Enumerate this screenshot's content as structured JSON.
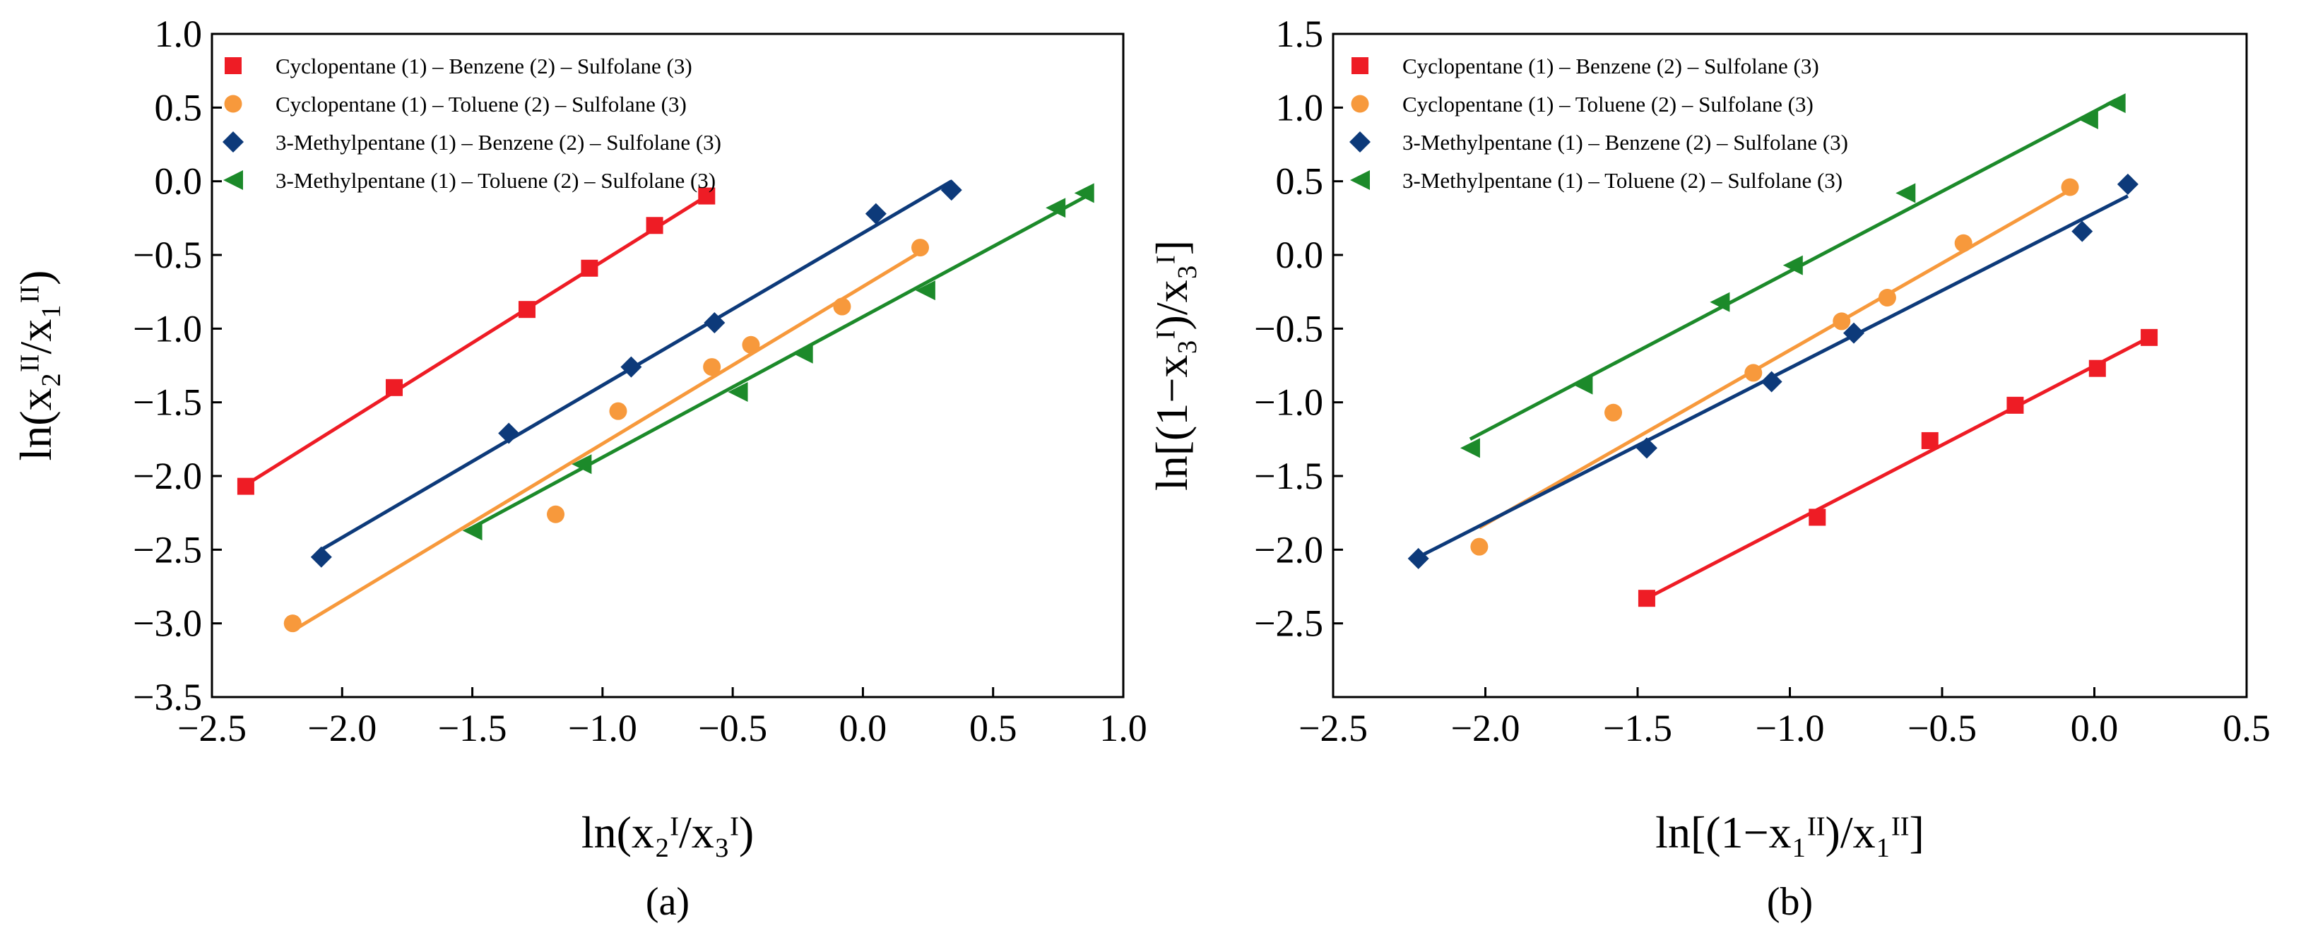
{
  "figure": {
    "colors": {
      "red": "#ee1c25",
      "orange": "#f7993c",
      "navy": "#0d3a7a",
      "green": "#1c8a2a"
    }
  },
  "chart_data": [
    {
      "type": "scatter",
      "panel_label": "(a)",
      "xlabel": "ln(x₂ᴵ/x₃ᴵ)",
      "ylabel": "ln(x₂ᴵᴵ/x₁ᴵᴵ)",
      "xlim": [
        -2.5,
        1.0
      ],
      "ylim": [
        -3.5,
        1.0
      ],
      "x_ticks": [
        -2.5,
        -2.0,
        -1.5,
        -1.0,
        -0.5,
        0.0,
        0.5,
        1.0
      ],
      "x_tick_labels": [
        "−2.5",
        "−2.0",
        "−1.5",
        "−1.0",
        "−0.5",
        "0.0",
        "0.5",
        "1.0"
      ],
      "y_ticks": [
        -3.5,
        -3.0,
        -2.5,
        -2.0,
        -1.5,
        -1.0,
        -0.5,
        0.0,
        0.5,
        1.0
      ],
      "y_tick_labels": [
        "−3.5",
        "−3.0",
        "−2.5",
        "−2.0",
        "−1.5",
        "−1.0",
        "−0.5",
        "0.0",
        "0.5",
        "1.0"
      ],
      "legend_position": "top-left",
      "series": [
        {
          "name": "Cyclopentane (1) – Benzene (2) – Sulfolane (3)",
          "marker": "square",
          "color": "#ee1c25",
          "points": [
            [
              -2.37,
              -2.07
            ],
            [
              -1.8,
              -1.4
            ],
            [
              -1.29,
              -0.87
            ],
            [
              -1.05,
              -0.59
            ],
            [
              -0.8,
              -0.3
            ],
            [
              -0.6,
              -0.1
            ]
          ],
          "fit": [
            [
              -2.37,
              -2.06
            ],
            [
              -0.6,
              -0.1
            ]
          ]
        },
        {
          "name": "Cyclopentane (1) – Toluene (2) – Sulfolane (3)",
          "marker": "circle",
          "color": "#f7993c",
          "points": [
            [
              -2.19,
              -3.0
            ],
            [
              -1.18,
              -2.26
            ],
            [
              -0.94,
              -1.56
            ],
            [
              -0.58,
              -1.26
            ],
            [
              -0.43,
              -1.11
            ],
            [
              -0.08,
              -0.85
            ],
            [
              0.22,
              -0.45
            ]
          ],
          "fit": [
            [
              -2.19,
              -3.05
            ],
            [
              0.22,
              -0.48
            ]
          ]
        },
        {
          "name": "3-Methylpentane (1) – Benzene (2) – Sulfolane (3)",
          "marker": "diamond",
          "color": "#0d3a7a",
          "points": [
            [
              -2.08,
              -2.55
            ],
            [
              -1.36,
              -1.71
            ],
            [
              -0.89,
              -1.26
            ],
            [
              -0.57,
              -0.96
            ],
            [
              0.05,
              -0.22
            ],
            [
              0.34,
              -0.06
            ]
          ],
          "fit": [
            [
              -2.08,
              -2.5
            ],
            [
              0.34,
              0.0
            ]
          ]
        },
        {
          "name": "3-Methylpentane (1) – Toluene (2) – Sulfolane (3)",
          "marker": "triangle-left",
          "color": "#1c8a2a",
          "points": [
            [
              -1.5,
              -2.37
            ],
            [
              -1.08,
              -1.92
            ],
            [
              -0.48,
              -1.43
            ],
            [
              -0.23,
              -1.17
            ],
            [
              0.24,
              -0.74
            ],
            [
              0.74,
              -0.18
            ],
            [
              0.85,
              -0.08
            ]
          ],
          "fit": [
            [
              -1.5,
              -2.35
            ],
            [
              0.87,
              -0.09
            ]
          ]
        }
      ]
    },
    {
      "type": "scatter",
      "panel_label": "(b)",
      "xlabel": "ln[(1−x₁ᴵᴵ)/x₁ᴵᴵ]",
      "ylabel": "ln[(1−x₃ᴵ)/x₃ᴵ]",
      "xlim": [
        -2.5,
        0.5
      ],
      "ylim": [
        -3.0,
        1.5
      ],
      "x_ticks": [
        -2.5,
        -2.0,
        -1.5,
        -1.0,
        -0.5,
        0.0,
        0.5
      ],
      "x_tick_labels": [
        "−2.5",
        "−2.0",
        "−1.5",
        "−1.0",
        "−0.5",
        "0.0",
        "0.5"
      ],
      "y_ticks": [
        -2.5,
        -2.0,
        -1.5,
        -1.0,
        -0.5,
        0.0,
        0.5,
        1.0,
        1.5
      ],
      "y_tick_labels": [
        "−2.5",
        "−2.0",
        "−1.5",
        "−1.0",
        "−0.5",
        "0.0",
        "0.5",
        "1.0",
        "1.5"
      ],
      "legend_position": "top-left",
      "series": [
        {
          "name": "Cyclopentane (1) – Benzene (2) – Sulfolane (3)",
          "marker": "square",
          "color": "#ee1c25",
          "points": [
            [
              -1.47,
              -2.33
            ],
            [
              -0.91,
              -1.78
            ],
            [
              -0.54,
              -1.26
            ],
            [
              -0.26,
              -1.02
            ],
            [
              0.01,
              -0.77
            ],
            [
              0.18,
              -0.56
            ]
          ],
          "fit": [
            [
              -1.47,
              -2.33
            ],
            [
              0.18,
              -0.56
            ]
          ]
        },
        {
          "name": "Cyclopentane (1) – Toluene (2) – Sulfolane (3)",
          "marker": "circle",
          "color": "#f7993c",
          "points": [
            [
              -2.02,
              -1.98
            ],
            [
              -1.58,
              -1.07
            ],
            [
              -1.12,
              -0.8
            ],
            [
              -0.83,
              -0.45
            ],
            [
              -0.68,
              -0.29
            ],
            [
              -0.43,
              0.08
            ],
            [
              -0.08,
              0.46
            ]
          ],
          "fit": [
            [
              -2.02,
              -1.85
            ],
            [
              -0.08,
              0.44
            ]
          ]
        },
        {
          "name": "3-Methylpentane (1) – Benzene (2) – Sulfolane (3)",
          "marker": "diamond",
          "color": "#0d3a7a",
          "points": [
            [
              -2.22,
              -2.06
            ],
            [
              -1.47,
              -1.31
            ],
            [
              -1.06,
              -0.86
            ],
            [
              -0.79,
              -0.53
            ],
            [
              -0.04,
              0.16
            ],
            [
              0.11,
              0.48
            ]
          ],
          "fit": [
            [
              -2.22,
              -2.05
            ],
            [
              0.11,
              0.4
            ]
          ]
        },
        {
          "name": "3-Methylpentane (1) – Toluene (2) – Sulfolane (3)",
          "marker": "triangle-left",
          "color": "#1c8a2a",
          "points": [
            [
              -2.05,
              -1.31
            ],
            [
              -1.68,
              -0.88
            ],
            [
              -1.23,
              -0.32
            ],
            [
              -0.99,
              -0.07
            ],
            [
              -0.62,
              0.42
            ],
            [
              -0.02,
              0.92
            ],
            [
              0.07,
              1.03
            ]
          ],
          "fit": [
            [
              -2.05,
              -1.25
            ],
            [
              0.07,
              1.05
            ]
          ]
        }
      ]
    }
  ]
}
